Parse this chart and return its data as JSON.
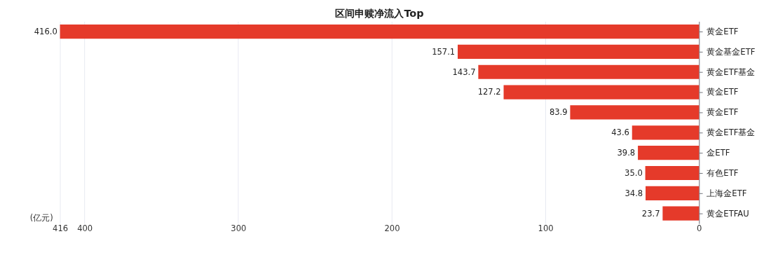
{
  "chart_data": {
    "type": "bar",
    "orientation": "horizontal",
    "title": "区间申赎净流入Top",
    "xlabel": "(亿元)",
    "categories": [
      "黄金ETF",
      "黄金基金ETF",
      "黄金ETF基金",
      "黄金ETF",
      "黄金ETF",
      "黄金ETF基金",
      "金ETF",
      "有色ETF",
      "上海金ETF",
      "黄金ETFAU"
    ],
    "values": [
      416.0,
      157.1,
      143.7,
      127.2,
      83.9,
      43.6,
      39.8,
      35.0,
      34.8,
      23.7
    ],
    "color": "#e53a2a",
    "xlim": [
      416,
      0
    ],
    "xticks": [
      416,
      400,
      300,
      200,
      100,
      0
    ],
    "value_labels": [
      "416.0",
      "157.1",
      "143.7",
      "127.2",
      "83.9",
      "43.6",
      "39.8",
      "35.0",
      "34.8",
      "23.7"
    ],
    "grid": "x"
  }
}
